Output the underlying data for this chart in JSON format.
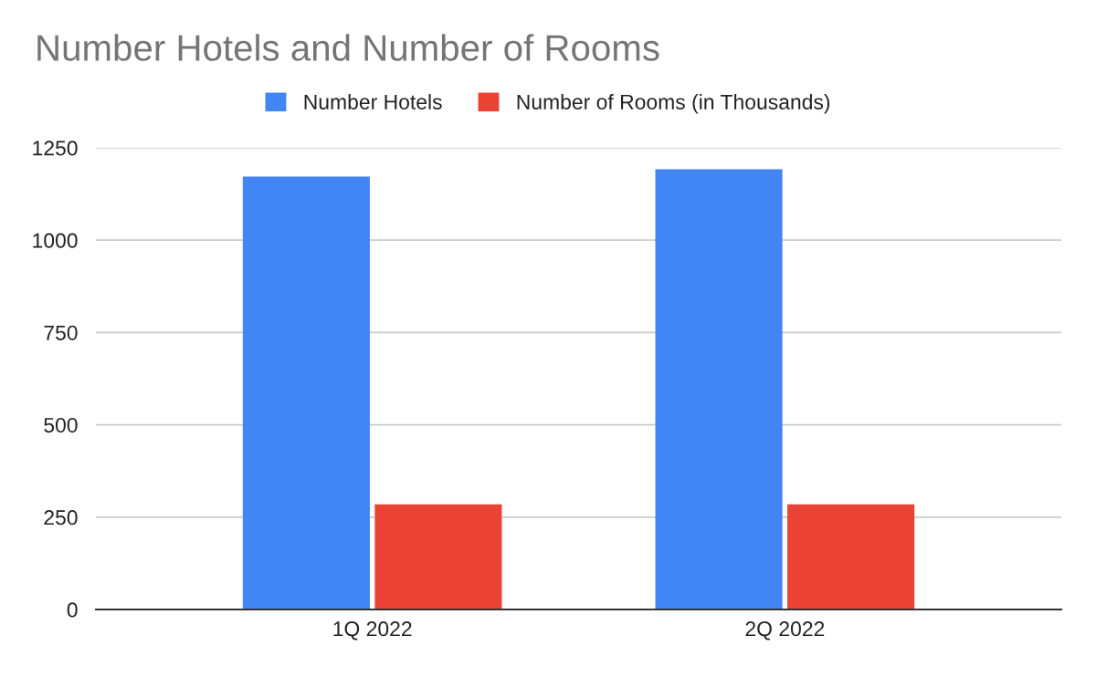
{
  "chart_data": {
    "type": "bar",
    "title": "Number Hotels and Number of Rooms",
    "categories": [
      "1Q 2022",
      "2Q 2022"
    ],
    "series": [
      {
        "name": "Number Hotels",
        "color": "#4285f4",
        "values": [
          1172,
          1192
        ]
      },
      {
        "name": "Number of Rooms (in Thousands)",
        "color": "#ea4335",
        "values": [
          285,
          285
        ]
      }
    ],
    "ylim": [
      0,
      1250
    ],
    "yticks": [
      0,
      250,
      500,
      750,
      1000,
      1250
    ],
    "grid": "y",
    "legend": "top"
  }
}
